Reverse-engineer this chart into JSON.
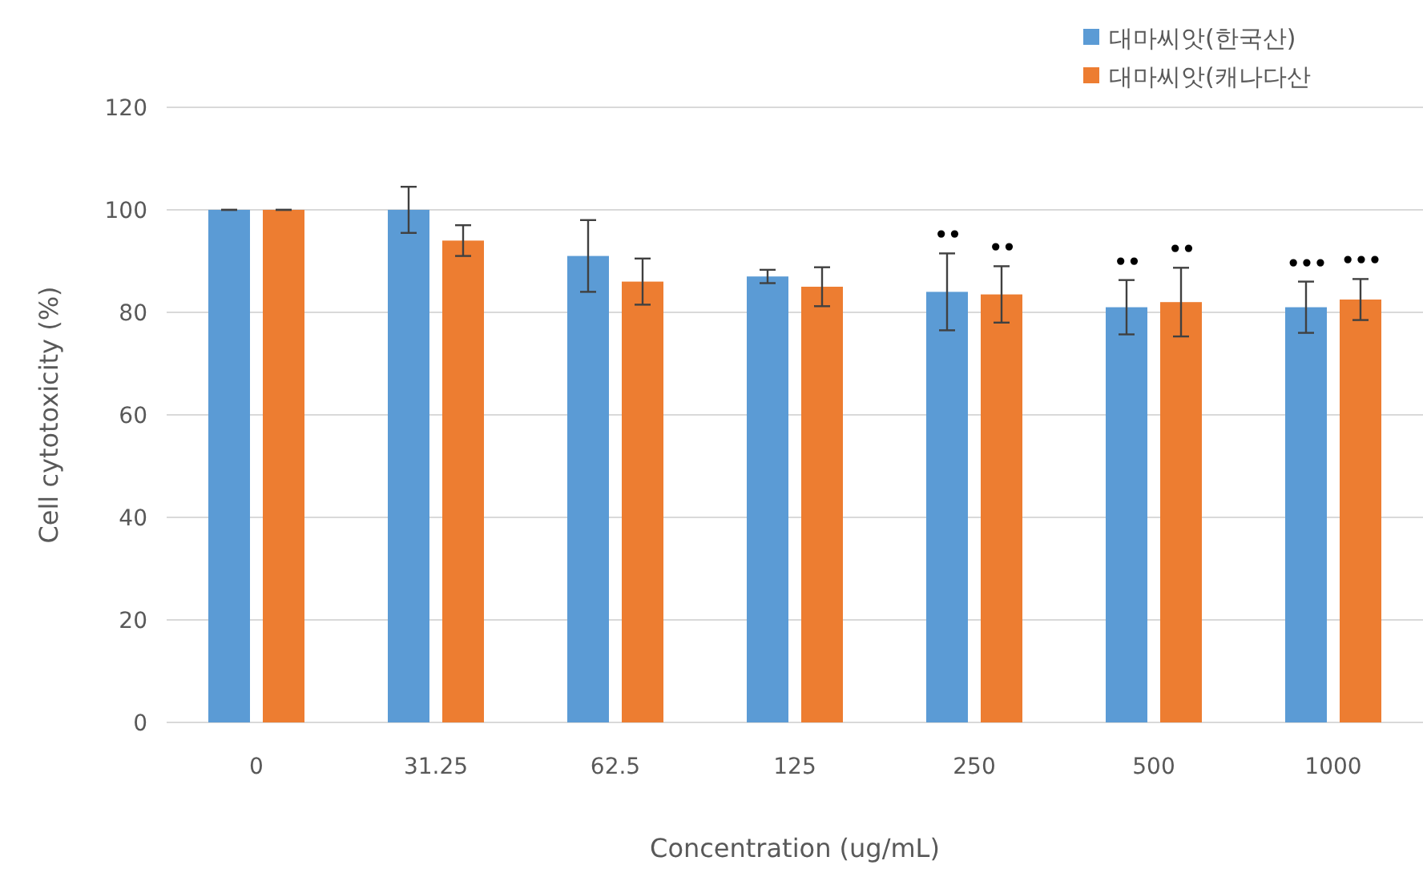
{
  "chart_data": {
    "type": "bar",
    "xlabel": "Concentration (ug/mL)",
    "ylabel": "Cell cytotoxicity (%)",
    "categories": [
      "0",
      "31.25",
      "62.5",
      "125",
      "250",
      "500",
      "1000"
    ],
    "series": [
      {
        "name": "대마씨앗(한국산)",
        "color": "#5b9bd5",
        "values": [
          100,
          100,
          91,
          87,
          84,
          81,
          81
        ],
        "errors": [
          0,
          4.5,
          7,
          1.3,
          7.5,
          5.3,
          5
        ]
      },
      {
        "name": "대마씨앗(캐나다산",
        "color": "#ed7d31",
        "values": [
          100,
          94,
          86,
          85,
          83.5,
          82,
          82.5
        ],
        "errors": [
          0,
          3,
          4.5,
          3.8,
          5.5,
          6.7,
          4
        ]
      }
    ],
    "ylim": [
      0,
      120
    ],
    "yticks": [
      0,
      20,
      40,
      60,
      80,
      100,
      120
    ],
    "grid": "y",
    "legend": "top right",
    "annotations": [
      {
        "text": "••",
        "x": "250",
        "y": 84
      },
      {
        "text": "••",
        "x": "250",
        "y": 83.5
      },
      {
        "text": "••",
        "x": "500",
        "y": 81
      },
      {
        "text": "••",
        "x": "500",
        "y": 82
      },
      {
        "text": "•••",
        "x": "1000",
        "y": 81
      },
      {
        "text": "•••",
        "x": "1000",
        "y": 82.5
      }
    ]
  }
}
